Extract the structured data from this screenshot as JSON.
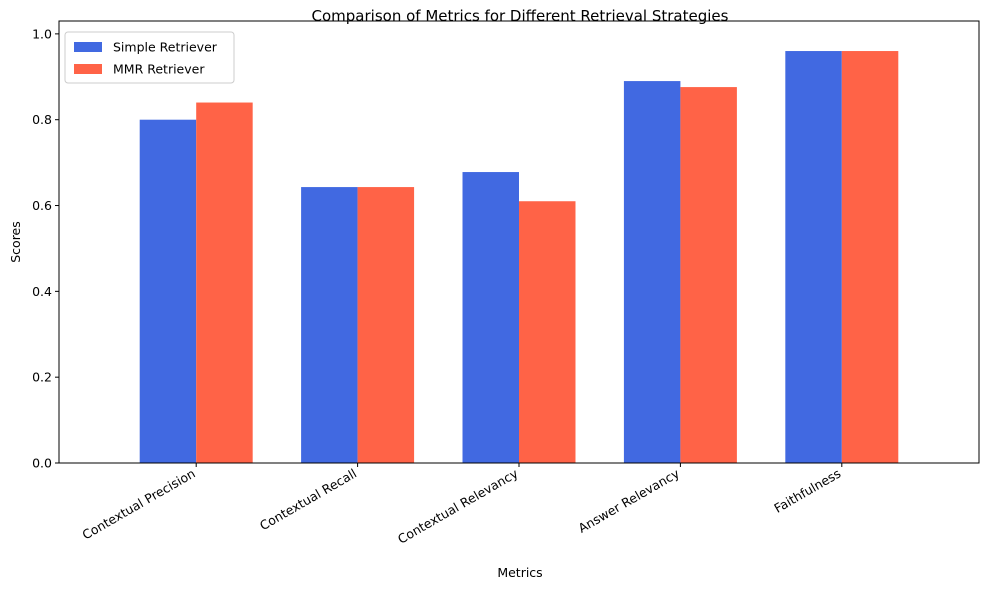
{
  "chart_data": {
    "type": "bar",
    "title": "Comparison of Metrics for Different Retrieval Strategies",
    "xlabel": "Metrics",
    "ylabel": "Scores",
    "categories": [
      "Contextual Precision",
      "Contextual Recall",
      "Contextual Relevancy",
      "Answer Relevancy",
      "Faithfulness"
    ],
    "series": [
      {
        "name": "Simple Retriever",
        "color": "#4169E1",
        "values": [
          0.8,
          0.643,
          0.678,
          0.89,
          0.96
        ]
      },
      {
        "name": "MMR Retriever",
        "color": "#FF6347",
        "values": [
          0.84,
          0.643,
          0.61,
          0.876,
          0.96
        ]
      }
    ],
    "ylim": [
      0,
      1.0
    ],
    "yticks": [
      "0.0",
      "0.2",
      "0.4",
      "0.6",
      "0.8",
      "1.0"
    ],
    "ytick_values": [
      0,
      0.2,
      0.4,
      0.6,
      0.8,
      1.0
    ],
    "legend": "upper-left",
    "grid": false
  }
}
